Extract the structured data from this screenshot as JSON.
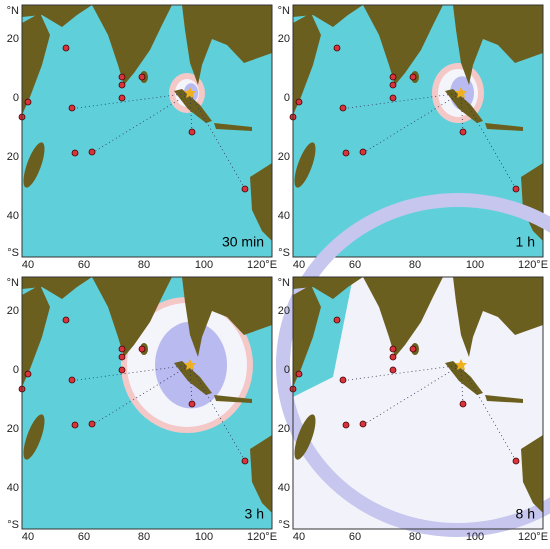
{
  "panels": [
    {
      "label": "30 min"
    },
    {
      "label": "1 h"
    },
    {
      "label": "3 h"
    },
    {
      "label": "8 h"
    }
  ],
  "y_labels": [
    "°N",
    "20",
    "0",
    "20",
    "40",
    "°S"
  ],
  "x_labels": [
    "40",
    "60",
    "80",
    "100",
    "120°E"
  ]
}
